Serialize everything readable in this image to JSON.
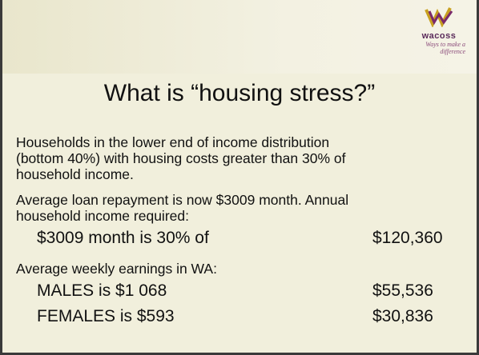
{
  "logo": {
    "name": "wacoss",
    "tagline": "Ways to make a difference"
  },
  "title": "What is “housing stress?”",
  "paragraphs": [
    "Households in the lower end of income distribution (bottom 40%) with housing costs greater than 30% of household income.",
    "Average loan repayment is now $3009 month. Annual household income required:"
  ],
  "required": {
    "label": "$3009 month is 30% of",
    "amount": "$120,360"
  },
  "earnings_heading": "Average weekly earnings in WA:",
  "earnings": [
    {
      "label": "MALES is $1 068",
      "amount": "$55,536"
    },
    {
      "label": "FEMALES is $593",
      "amount": "$30,836"
    }
  ]
}
